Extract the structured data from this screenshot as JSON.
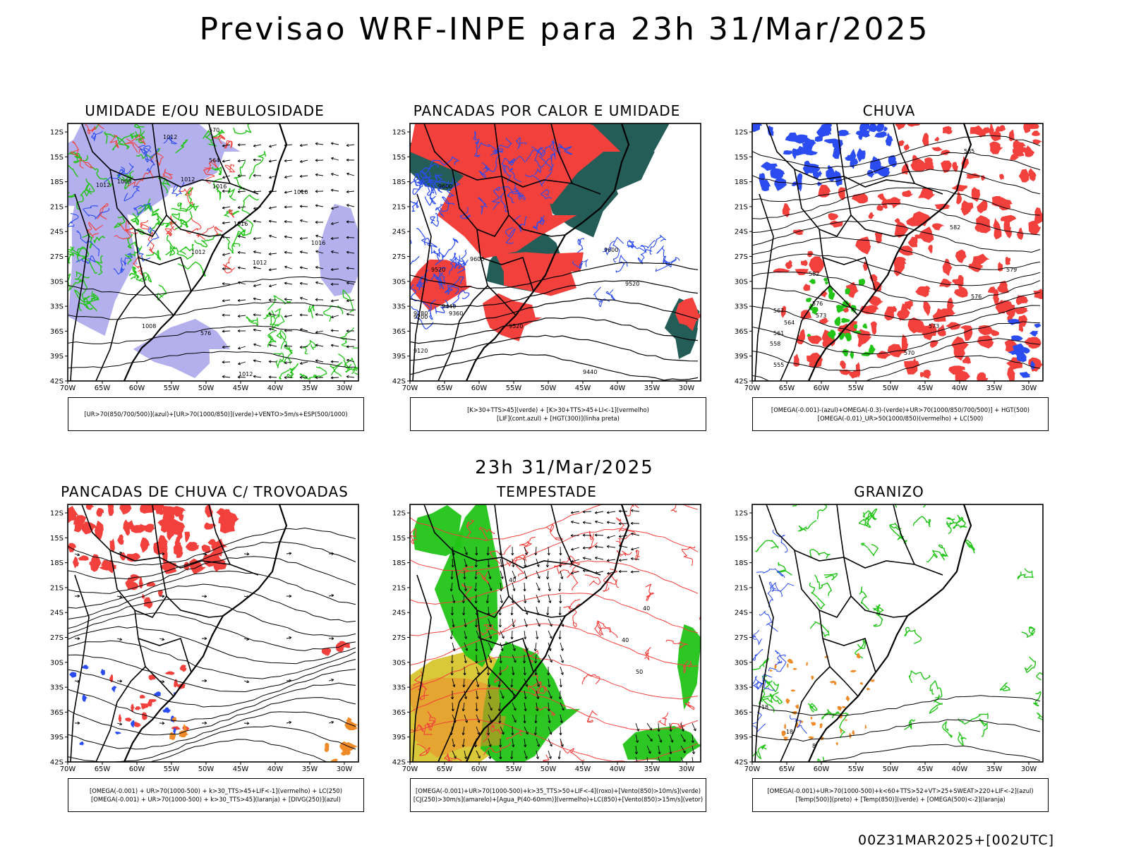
{
  "header": {
    "title": "Previsao WRF-INPE  para 23h 31/Mar/2025",
    "middle_title": "23h 31/Mar/2025",
    "footer": "00Z31MAR2025+[002UTC]"
  },
  "axes": {
    "lat_ticks": [
      "12S",
      "15S",
      "18S",
      "21S",
      "24S",
      "27S",
      "30S",
      "33S",
      "36S",
      "39S",
      "42S"
    ],
    "lon_ticks": [
      "70W",
      "65W",
      "60W",
      "55W",
      "50W",
      "45W",
      "40W",
      "35W",
      "30W"
    ]
  },
  "colors": {
    "blue": "#2b4cf0",
    "green": "#22c418",
    "red": "#f2403c",
    "dark_teal": "#245c58",
    "lavender": "#b4b0ee",
    "yellow": "#d8c83a",
    "orange": "#ee8a28"
  },
  "panels": [
    {
      "title": "UMIDADE E/OU NEBULOSIDADE",
      "legend": [
        "[UR>70(850/700/500)](azul)+[UR>70(1000/850)](verde)+VENTO>5m/s+ESP(500/1000)"
      ],
      "contour_labels": [
        "1012",
        "1008",
        "1012",
        "1012",
        "1016",
        "1016",
        "1016",
        "1012",
        "1016",
        "1012",
        "576",
        "570",
        "564",
        "1008",
        "1012"
      ]
    },
    {
      "title": "PANCADAS POR CALOR E UMIDADE",
      "legend": [
        "[K>30+TTS>45](verde) + [K>30+TTS>45+LI<-1](vermelho)",
        "[LIF](cont.azul) + [HGT(300)](linha preta)"
      ],
      "contour_labels": [
        "9600",
        "9520",
        "9600",
        "9440",
        "9360",
        "9280",
        "9200",
        "9120",
        "9520",
        "9600",
        "9520",
        "9440"
      ]
    },
    {
      "title": "CHUVA",
      "legend": [
        "[OMEGA(-0.001)-(azul)+OMEGA(-0.3)-(verde)+UR>70(1000/850/700/500)] + HGT(500)",
        "[OMEGA(-0.01)_UR>50(1000/850)(vermelho) + LC(500)"
      ],
      "contour_labels": [
        "585",
        "582",
        "579",
        "576",
        "573",
        "570",
        "567",
        "564",
        "561",
        "558",
        "555",
        "582",
        "576",
        "573"
      ]
    },
    {
      "title": "PANCADAS DE CHUVA C/ TROVOADAS",
      "legend": [
        "[OMEGA(-0.001) + UR>70(1000-500) + k>30_TTS>45+LIF<-1](vermelho) + LC(250)",
        "[OMEGA(-0.001) + UR>70(1000-500) + k>30_TTS>45](laranja) + [DIVG(250)](azul)"
      ],
      "contour_labels": []
    },
    {
      "title": "TEMPESTADE",
      "legend": [
        "[OMEGA(-0.001)+UR>70(1000-500)+k>35_TTS>50+LIF<-4](roxo)+[Vento(850)>10m/s](verde)",
        "[CJ(250)>30m/s](amarelo)+[Agua_P(40-60mm)](vermelho)+LC(850)+[Vento(850)>15m/s](vetor)"
      ],
      "contour_labels": [
        "40",
        "40",
        "50",
        "40"
      ]
    },
    {
      "title": "GRANIZO",
      "legend": [
        "[OMEGA(-0.001)+UR>70(1000-500)+k<60+TTS>52+VT>25+SWEAT>220+LIF<-2](azul)",
        "[Temp(500)](preto) + [Temp(850)](verde) + [OMEGA(500)<-2](laranja)"
      ],
      "contour_labels": [
        "-18",
        "-18",
        "8"
      ]
    }
  ]
}
